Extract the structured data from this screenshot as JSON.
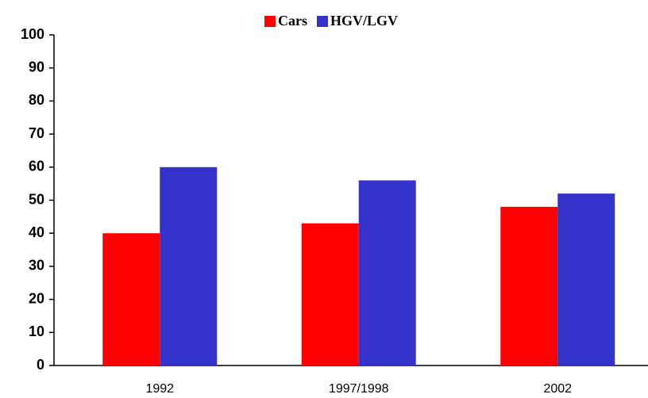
{
  "chart_data": {
    "type": "bar",
    "categories": [
      "1992",
      "1997/1998",
      "2002"
    ],
    "series": [
      {
        "name": "Cars",
        "color": "#ff0000",
        "values": [
          40,
          43,
          48
        ]
      },
      {
        "name": "HGV/LGV",
        "color": "#3333cc",
        "values": [
          60,
          56,
          52
        ]
      }
    ],
    "ylim": [
      0,
      100
    ],
    "yticks": [
      0,
      10,
      20,
      30,
      40,
      50,
      60,
      70,
      80,
      90,
      100
    ],
    "grid": false,
    "legend": "top"
  }
}
